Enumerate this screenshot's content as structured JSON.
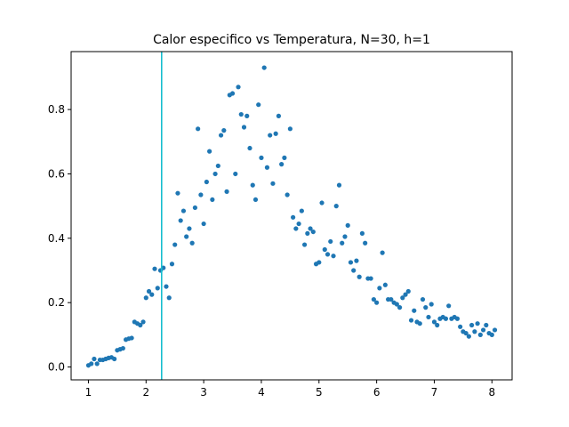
{
  "chart_data": {
    "type": "scatter",
    "title": "Calor especifico vs Temperatura, N=30, h=1",
    "xlabel": "",
    "ylabel": "",
    "xlim": [
      0.7,
      8.35
    ],
    "ylim": [
      -0.04,
      0.98
    ],
    "xticks": [
      1,
      2,
      3,
      4,
      5,
      6,
      7,
      8
    ],
    "xtick_labels": [
      "1",
      "2",
      "3",
      "4",
      "5",
      "6",
      "7",
      "8"
    ],
    "yticks": [
      0.0,
      0.2,
      0.4,
      0.6,
      0.8
    ],
    "ytick_labels": [
      "0.0",
      "0.2",
      "0.4",
      "0.6",
      "0.8"
    ],
    "grid": false,
    "marker_color": "#1f77b4",
    "vline": {
      "x": 2.27,
      "color": "#17becf"
    },
    "points": [
      [
        1.0,
        0.005
      ],
      [
        1.05,
        0.01
      ],
      [
        1.1,
        0.025
      ],
      [
        1.15,
        0.01
      ],
      [
        1.2,
        0.022
      ],
      [
        1.25,
        0.022
      ],
      [
        1.3,
        0.025
      ],
      [
        1.35,
        0.028
      ],
      [
        1.4,
        0.03
      ],
      [
        1.45,
        0.025
      ],
      [
        1.5,
        0.052
      ],
      [
        1.55,
        0.055
      ],
      [
        1.6,
        0.058
      ],
      [
        1.65,
        0.085
      ],
      [
        1.7,
        0.088
      ],
      [
        1.75,
        0.09
      ],
      [
        1.8,
        0.14
      ],
      [
        1.85,
        0.135
      ],
      [
        1.9,
        0.13
      ],
      [
        1.95,
        0.14
      ],
      [
        2.0,
        0.215
      ],
      [
        2.05,
        0.235
      ],
      [
        2.1,
        0.225
      ],
      [
        2.15,
        0.305
      ],
      [
        2.2,
        0.245
      ],
      [
        2.25,
        0.3
      ],
      [
        2.3,
        0.308
      ],
      [
        2.35,
        0.25
      ],
      [
        2.4,
        0.215
      ],
      [
        2.45,
        0.32
      ],
      [
        2.5,
        0.38
      ],
      [
        2.55,
        0.54
      ],
      [
        2.6,
        0.455
      ],
      [
        2.65,
        0.485
      ],
      [
        2.7,
        0.405
      ],
      [
        2.75,
        0.43
      ],
      [
        2.8,
        0.385
      ],
      [
        2.85,
        0.495
      ],
      [
        2.9,
        0.74
      ],
      [
        2.95,
        0.535
      ],
      [
        3.0,
        0.445
      ],
      [
        3.05,
        0.575
      ],
      [
        3.1,
        0.67
      ],
      [
        3.15,
        0.52
      ],
      [
        3.2,
        0.6
      ],
      [
        3.25,
        0.625
      ],
      [
        3.3,
        0.72
      ],
      [
        3.35,
        0.735
      ],
      [
        3.4,
        0.545
      ],
      [
        3.45,
        0.845
      ],
      [
        3.5,
        0.85
      ],
      [
        3.55,
        0.6
      ],
      [
        3.6,
        0.87
      ],
      [
        3.65,
        0.785
      ],
      [
        3.7,
        0.745
      ],
      [
        3.75,
        0.78
      ],
      [
        3.8,
        0.68
      ],
      [
        3.85,
        0.565
      ],
      [
        3.9,
        0.52
      ],
      [
        3.95,
        0.815
      ],
      [
        4.0,
        0.65
      ],
      [
        4.05,
        0.93
      ],
      [
        4.1,
        0.62
      ],
      [
        4.15,
        0.72
      ],
      [
        4.2,
        0.57
      ],
      [
        4.25,
        0.725
      ],
      [
        4.3,
        0.78
      ],
      [
        4.35,
        0.63
      ],
      [
        4.4,
        0.65
      ],
      [
        4.45,
        0.535
      ],
      [
        4.5,
        0.74
      ],
      [
        4.55,
        0.465
      ],
      [
        4.6,
        0.43
      ],
      [
        4.65,
        0.445
      ],
      [
        4.7,
        0.485
      ],
      [
        4.75,
        0.38
      ],
      [
        4.8,
        0.415
      ],
      [
        4.85,
        0.43
      ],
      [
        4.9,
        0.42
      ],
      [
        4.95,
        0.32
      ],
      [
        5.0,
        0.325
      ],
      [
        5.05,
        0.51
      ],
      [
        5.1,
        0.365
      ],
      [
        5.15,
        0.35
      ],
      [
        5.2,
        0.39
      ],
      [
        5.25,
        0.345
      ],
      [
        5.3,
        0.5
      ],
      [
        5.35,
        0.565
      ],
      [
        5.4,
        0.385
      ],
      [
        5.45,
        0.405
      ],
      [
        5.5,
        0.44
      ],
      [
        5.55,
        0.325
      ],
      [
        5.6,
        0.3
      ],
      [
        5.65,
        0.33
      ],
      [
        5.7,
        0.28
      ],
      [
        5.75,
        0.415
      ],
      [
        5.8,
        0.385
      ],
      [
        5.85,
        0.275
      ],
      [
        5.9,
        0.275
      ],
      [
        5.95,
        0.21
      ],
      [
        6.0,
        0.2
      ],
      [
        6.05,
        0.245
      ],
      [
        6.1,
        0.355
      ],
      [
        6.15,
        0.255
      ],
      [
        6.2,
        0.21
      ],
      [
        6.25,
        0.21
      ],
      [
        6.3,
        0.2
      ],
      [
        6.35,
        0.195
      ],
      [
        6.4,
        0.185
      ],
      [
        6.45,
        0.215
      ],
      [
        6.5,
        0.225
      ],
      [
        6.55,
        0.235
      ],
      [
        6.6,
        0.145
      ],
      [
        6.65,
        0.175
      ],
      [
        6.7,
        0.14
      ],
      [
        6.75,
        0.135
      ],
      [
        6.8,
        0.21
      ],
      [
        6.85,
        0.185
      ],
      [
        6.9,
        0.155
      ],
      [
        6.95,
        0.195
      ],
      [
        7.0,
        0.14
      ],
      [
        7.05,
        0.13
      ],
      [
        7.1,
        0.15
      ],
      [
        7.15,
        0.155
      ],
      [
        7.2,
        0.15
      ],
      [
        7.25,
        0.19
      ],
      [
        7.3,
        0.15
      ],
      [
        7.35,
        0.155
      ],
      [
        7.4,
        0.15
      ],
      [
        7.45,
        0.125
      ],
      [
        7.5,
        0.11
      ],
      [
        7.55,
        0.105
      ],
      [
        7.6,
        0.095
      ],
      [
        7.65,
        0.13
      ],
      [
        7.7,
        0.11
      ],
      [
        7.75,
        0.135
      ],
      [
        7.8,
        0.1
      ],
      [
        7.85,
        0.115
      ],
      [
        7.9,
        0.13
      ],
      [
        7.95,
        0.105
      ],
      [
        8.0,
        0.1
      ],
      [
        8.05,
        0.115
      ]
    ]
  }
}
